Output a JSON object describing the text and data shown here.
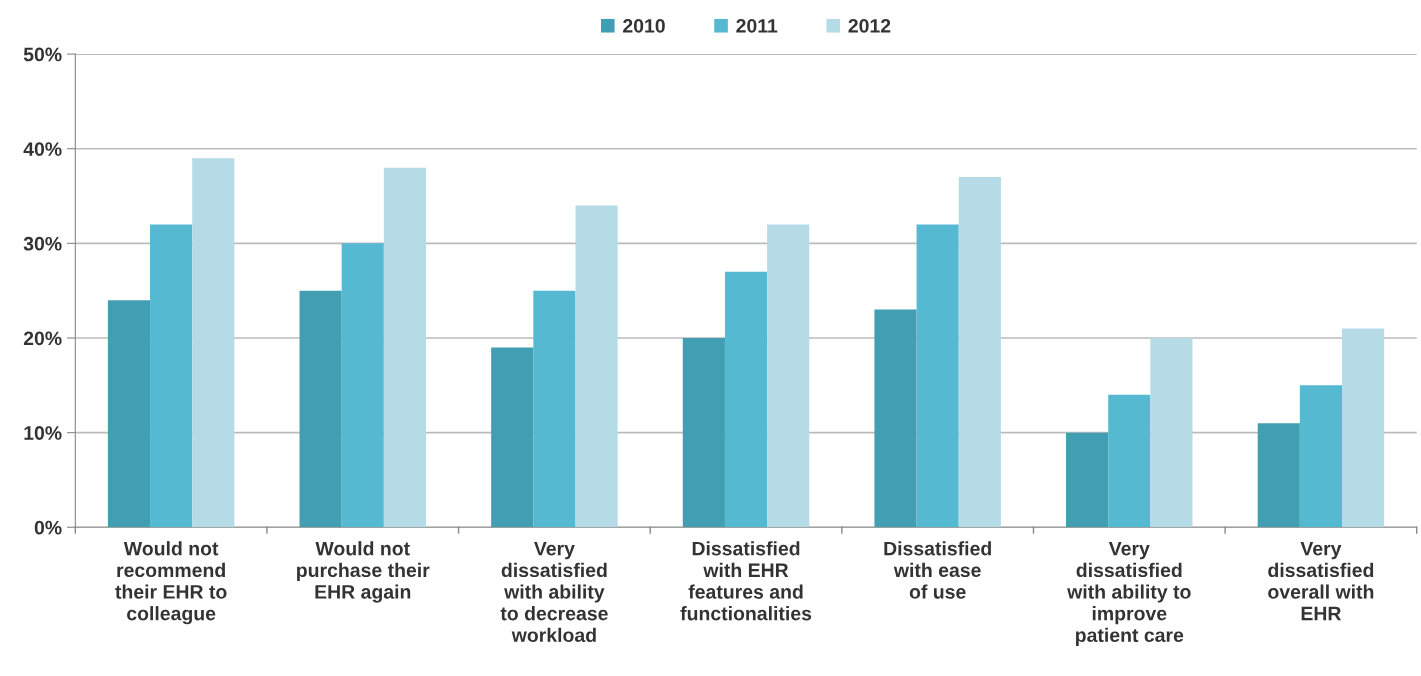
{
  "chart_data": {
    "type": "bar",
    "categories": [
      "Would not\nrecommend\ntheir EHR to\ncolleague",
      "Would not\npurchase their\nEHR again",
      "Very\ndissatisfied\nwith ability\nto decrease\nworkload",
      "Dissatisfied\nwith EHR\nfeatures and\nfunctionalities",
      "Dissatisfied\nwith ease\nof use",
      "Very\ndissatisfied\nwith ability to\nimprove\npatient care",
      "Very\ndissatisfied\noverall with\nEHR"
    ],
    "series": [
      {
        "name": "2010",
        "color": "#429fb3",
        "values": [
          24,
          25,
          19,
          20,
          23,
          10,
          11
        ]
      },
      {
        "name": "2011",
        "color": "#55b9d1",
        "values": [
          32,
          30,
          25,
          27,
          32,
          14,
          15
        ]
      },
      {
        "name": "2012",
        "color": "#b5dbe6",
        "values": [
          39,
          38,
          34,
          32,
          37,
          20,
          21
        ]
      }
    ],
    "ylim": [
      0,
      50
    ],
    "yticks": [
      {
        "value": 0,
        "label": "0%"
      },
      {
        "value": 10,
        "label": "10%"
      },
      {
        "value": 20,
        "label": "20%"
      },
      {
        "value": 30,
        "label": "30%"
      },
      {
        "value": 40,
        "label": "40%"
      },
      {
        "value": 50,
        "label": "50%"
      }
    ],
    "grid": "y",
    "legend": "top"
  }
}
